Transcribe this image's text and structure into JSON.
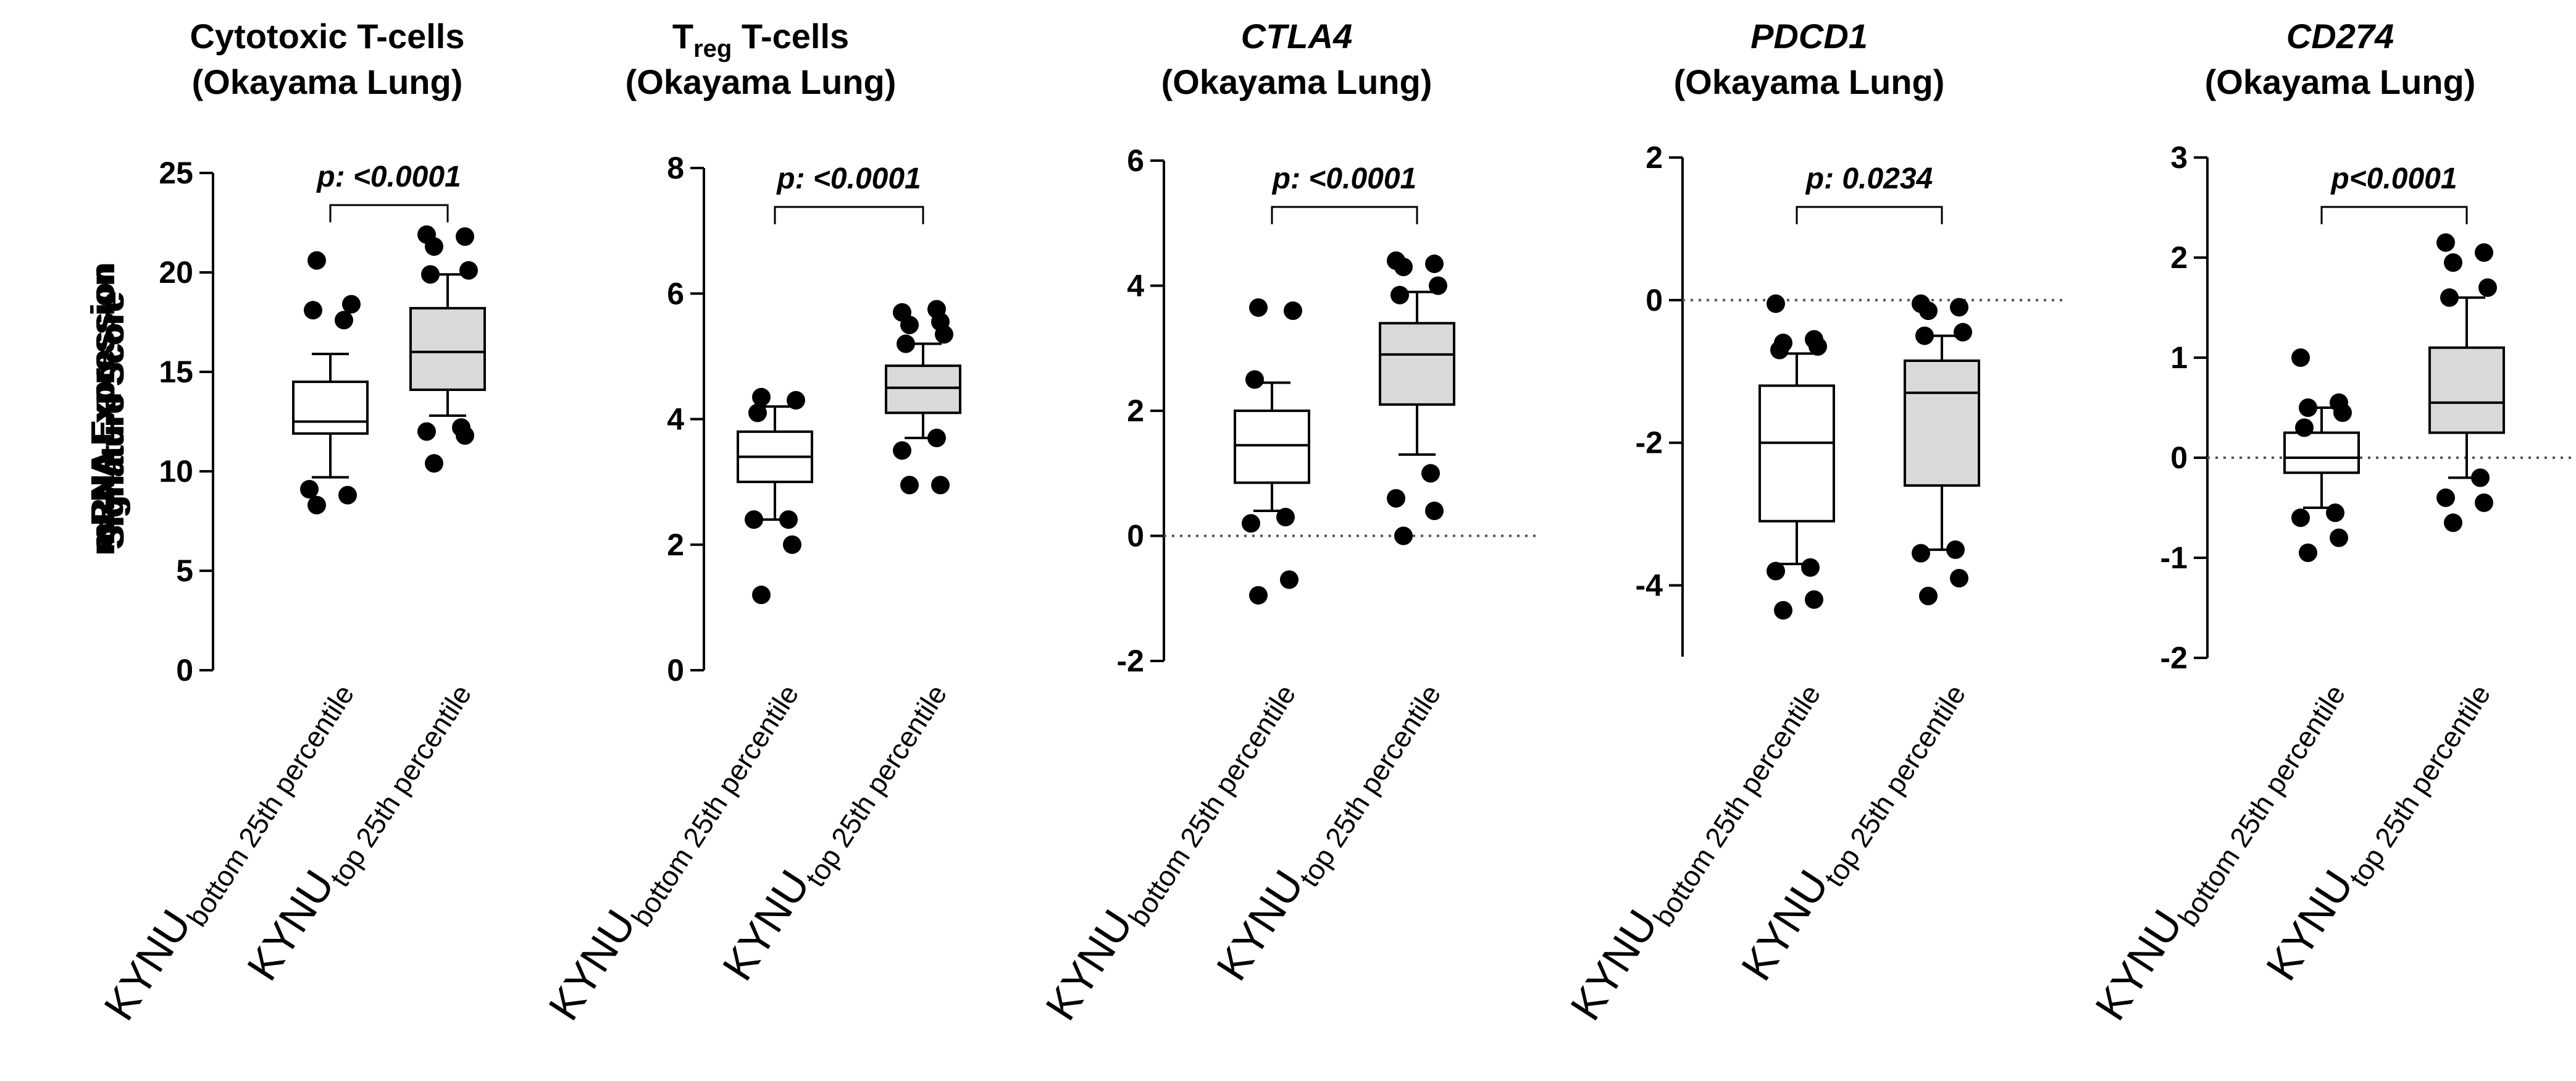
{
  "chart_data": [
    {
      "type": "boxplot",
      "title_parts": [
        {
          "text": "Cytotoxic T-cells",
          "style": "normal"
        }
      ],
      "subtitle": "(Okayama Lung)",
      "ylabel": "Signature Score",
      "ylim": [
        0,
        25
      ],
      "yticks": [
        0,
        5,
        10,
        15,
        20,
        25
      ],
      "ytick_labels": [
        "0",
        "5",
        "10",
        "15",
        "20",
        "25"
      ],
      "ref_line": null,
      "pvalue": "p: <0.0001",
      "groups": [
        {
          "label_main": "KYNU",
          "label_sub": "bottom 25th percentile",
          "fill": "#ffffff",
          "whisker_low": 9.7,
          "q1": 11.9,
          "median": 12.5,
          "q3": 14.5,
          "whisker_high": 15.9,
          "outliers": [
            8.3,
            8.8,
            9.1,
            17.6,
            18.1,
            18.4,
            20.6
          ]
        },
        {
          "label_main": "KYNU",
          "label_sub": "top 25th percentile",
          "fill": "#d9d9d9",
          "whisker_low": 12.8,
          "q1": 14.1,
          "median": 16.0,
          "q3": 18.2,
          "whisker_high": 19.9,
          "outliers": [
            10.4,
            11.8,
            12.0,
            12.2,
            19.9,
            20.1,
            21.3,
            21.8,
            21.9
          ]
        }
      ]
    },
    {
      "type": "boxplot",
      "title_parts": [
        {
          "text": "T",
          "style": "normal"
        },
        {
          "text": "reg",
          "style": "sub"
        },
        {
          "text": " T-cells",
          "style": "normal"
        }
      ],
      "subtitle": "(Okayama Lung)",
      "ylabel": "Signature Score",
      "ylim": [
        0,
        8
      ],
      "yticks": [
        0,
        2,
        4,
        6,
        8
      ],
      "ytick_labels": [
        "0",
        "2",
        "4",
        "6",
        "8"
      ],
      "ref_line": null,
      "pvalue": "p: <0.0001",
      "groups": [
        {
          "label_main": "KYNU",
          "label_sub": "bottom 25th percentile",
          "fill": "#ffffff",
          "whisker_low": 2.4,
          "q1": 3.0,
          "median": 3.4,
          "q3": 3.8,
          "whisker_high": 4.2,
          "outliers": [
            1.2,
            2.0,
            2.4,
            2.4,
            4.1,
            4.3,
            4.35
          ]
        },
        {
          "label_main": "KYNU",
          "label_sub": "top 25th percentile",
          "fill": "#d9d9d9",
          "whisker_low": 3.7,
          "q1": 4.1,
          "median": 4.5,
          "q3": 4.85,
          "whisker_high": 5.2,
          "outliers": [
            2.95,
            2.95,
            3.5,
            3.7,
            5.2,
            5.35,
            5.5,
            5.55,
            5.7,
            5.75
          ]
        }
      ]
    },
    {
      "type": "boxplot",
      "title_parts": [
        {
          "text": "CTLA4",
          "style": "italic"
        }
      ],
      "subtitle": "(Okayama Lung)",
      "ylabel": "mRNA Expression",
      "ylim": [
        -2,
        6
      ],
      "yticks": [
        -2,
        0,
        2,
        4,
        6
      ],
      "ytick_labels": [
        "-2",
        "0",
        "2",
        "4",
        "6"
      ],
      "ref_line": 0,
      "pvalue": "p: <0.0001",
      "groups": [
        {
          "label_main": "KYNU",
          "label_sub": "bottom 25th percentile",
          "fill": "#ffffff",
          "whisker_low": 0.4,
          "q1": 0.85,
          "median": 1.45,
          "q3": 2.0,
          "whisker_high": 2.45,
          "outliers": [
            -0.95,
            -0.7,
            0.2,
            0.3,
            2.5,
            3.6,
            3.65
          ]
        },
        {
          "label_main": "KYNU",
          "label_sub": "top 25th percentile",
          "fill": "#d9d9d9",
          "whisker_low": 1.3,
          "q1": 2.1,
          "median": 2.9,
          "q3": 3.4,
          "whisker_high": 3.9,
          "outliers": [
            0.0,
            0.4,
            0.6,
            1.0,
            3.85,
            4.0,
            4.3,
            4.35,
            4.4
          ]
        }
      ]
    },
    {
      "type": "boxplot",
      "title_parts": [
        {
          "text": "PDCD1",
          "style": "italic"
        }
      ],
      "subtitle": "(Okayama Lung)",
      "ylabel": "mRNA Expression",
      "ylim": [
        -5,
        2
      ],
      "yticks": [
        -4,
        -2,
        0,
        2
      ],
      "ytick_labels": [
        "-4",
        "-2",
        "0",
        "2"
      ],
      "ref_line": 0,
      "pvalue": "p: 0.0234",
      "groups": [
        {
          "label_main": "KYNU",
          "label_sub": "bottom 25th percentile",
          "fill": "#ffffff",
          "whisker_low": -3.7,
          "q1": -3.1,
          "median": -2.0,
          "q3": -1.2,
          "whisker_high": -0.75,
          "outliers": [
            -4.35,
            -4.2,
            -3.8,
            -3.75,
            -0.7,
            -0.65,
            -0.6,
            -0.55,
            -0.05
          ]
        },
        {
          "label_main": "KYNU",
          "label_sub": "top 25th percentile",
          "fill": "#d9d9d9",
          "whisker_low": -3.5,
          "q1": -2.6,
          "median": -1.3,
          "q3": -0.85,
          "whisker_high": -0.5,
          "outliers": [
            -4.15,
            -3.9,
            -3.55,
            -3.5,
            -0.5,
            -0.45,
            -0.15,
            -0.1,
            -0.05
          ]
        }
      ]
    },
    {
      "type": "boxplot",
      "title_parts": [
        {
          "text": "CD274",
          "style": "italic"
        }
      ],
      "subtitle": "(Okayama Lung)",
      "ylabel": "mRNA Expression",
      "ylim": [
        -2,
        3
      ],
      "yticks": [
        -2,
        -1,
        0,
        1,
        2,
        3
      ],
      "ytick_labels": [
        "-2",
        "-1",
        "0",
        "1",
        "2",
        "3"
      ],
      "ref_line": 0,
      "pvalue": "p<0.0001",
      "groups": [
        {
          "label_main": "KYNU",
          "label_sub": "bottom 25th percentile",
          "fill": "#ffffff",
          "whisker_low": -0.5,
          "q1": -0.15,
          "median": 0.0,
          "q3": 0.25,
          "whisker_high": 0.5,
          "outliers": [
            -0.95,
            -0.8,
            -0.6,
            -0.55,
            0.3,
            0.45,
            0.5,
            0.55,
            1.0
          ]
        },
        {
          "label_main": "KYNU",
          "label_sub": "top 25th percentile",
          "fill": "#d9d9d9",
          "whisker_low": -0.2,
          "q1": 0.25,
          "median": 0.55,
          "q3": 1.1,
          "whisker_high": 1.6,
          "outliers": [
            -0.65,
            -0.45,
            -0.4,
            -0.2,
            1.6,
            1.7,
            1.95,
            2.05,
            2.15
          ]
        }
      ]
    }
  ]
}
